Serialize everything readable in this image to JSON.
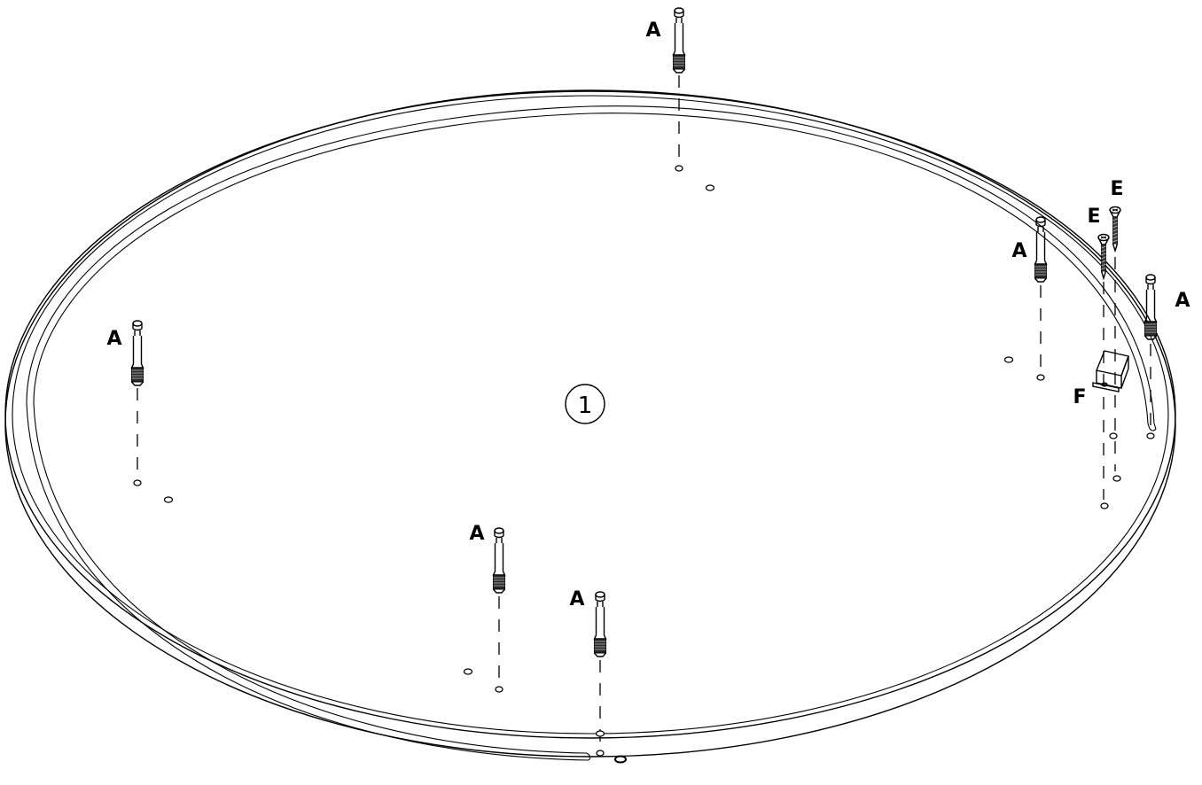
{
  "diagram": {
    "step_number": "1",
    "part_labels": {
      "dowel": "A",
      "screw": "E",
      "bracket": "F"
    }
  }
}
